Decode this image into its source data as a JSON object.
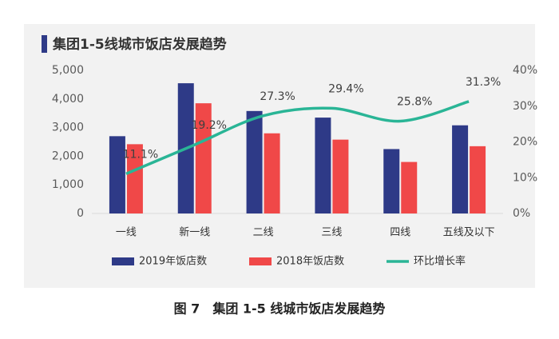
{
  "chart_data": {
    "type": "bar",
    "title": "集团1-5线城市饭店发展趋势",
    "caption": "图 7　集团 1-5 线城市饭店发展趋势",
    "categories": [
      "一线",
      "新一线",
      "二线",
      "三线",
      "四线",
      "五线及以下"
    ],
    "series": [
      {
        "name": "2019年饭店数",
        "color": "#2e3a87",
        "values": [
          2700,
          4550,
          3580,
          3350,
          2250,
          3080
        ]
      },
      {
        "name": "2018年饭店数",
        "color": "#f04848",
        "values": [
          2420,
          3850,
          2800,
          2580,
          1800,
          2350
        ]
      },
      {
        "name": "环比增长率",
        "color": "#2ab596",
        "axis": "y2",
        "type": "line",
        "values": [
          11.1,
          19.2,
          27.3,
          29.4,
          25.8,
          31.3
        ],
        "value_labels": [
          "11.1%",
          "19.2%",
          "27.3%",
          "29.4%",
          "25.8%",
          "31.3%"
        ]
      }
    ],
    "ylim": [
      0,
      5000
    ],
    "yticks": [
      0,
      {
        "value": 1000,
        "label": "1,000"
      },
      {
        "value": 2000,
        "label": "2,000"
      },
      {
        "value": 3000,
        "label": "3,000"
      },
      {
        "value": 4000,
        "label": "4,000"
      },
      {
        "value": 5000,
        "label": "5,000"
      }
    ],
    "y2lim": [
      0,
      40
    ],
    "y2ticks": [
      {
        "value": 0,
        "label": "0%"
      },
      {
        "value": 10,
        "label": "10%"
      },
      {
        "value": 20,
        "label": "20%"
      },
      {
        "value": 30,
        "label": "30%"
      },
      {
        "value": 40,
        "label": "40%"
      }
    ],
    "legend": "bottom",
    "grid": false
  }
}
